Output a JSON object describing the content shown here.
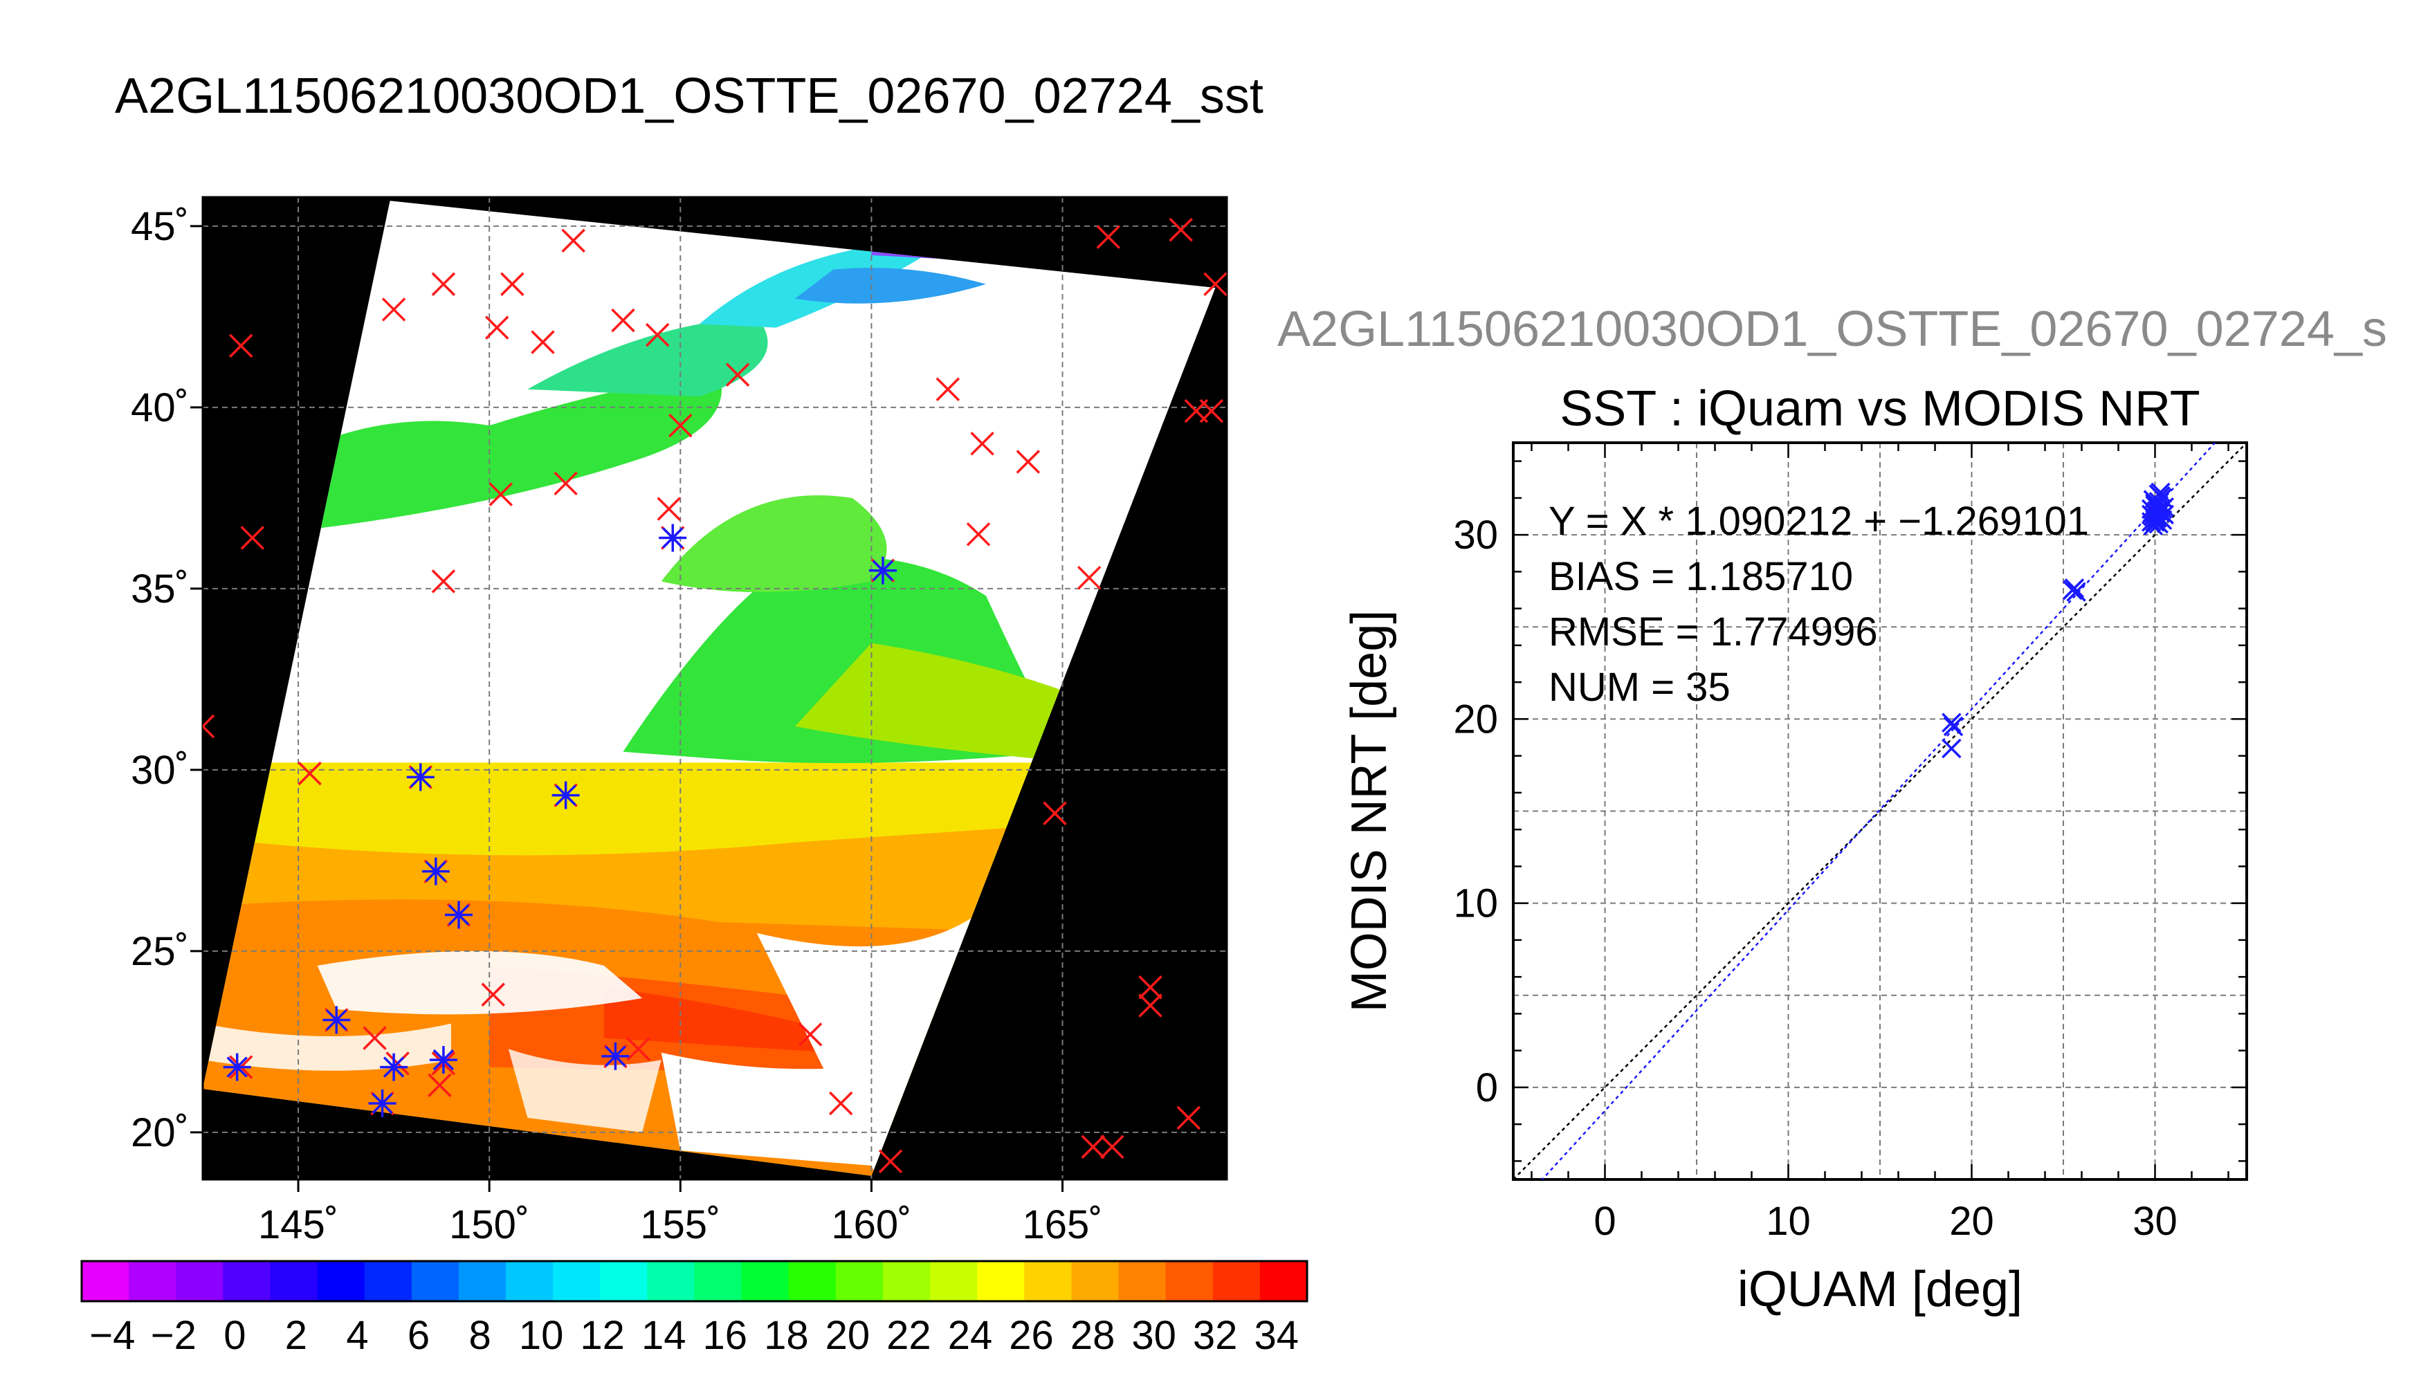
{
  "page_title": "A2GL11506210030OD1_OSTTE_02670_02724_sst",
  "chart_data": [
    {
      "type": "map",
      "title": "A2GL11506210030OD1_OSTTE_02670_02724_sst",
      "x_ticks": [
        145,
        150,
        155,
        160,
        165
      ],
      "y_ticks": [
        20,
        25,
        30,
        35,
        40,
        45
      ],
      "x_tick_labels": [
        "145˚",
        "150˚",
        "155˚",
        "160˚",
        "165˚"
      ],
      "y_tick_labels": [
        "20˚",
        "25˚",
        "30˚",
        "35˚",
        "40˚",
        "45˚"
      ],
      "xlim": [
        142.5,
        169.3
      ],
      "ylim": [
        18.7,
        45.8
      ],
      "grid": true,
      "swath_corners_lonlat": [
        [
          147.4,
          45.7
        ],
        [
          169.0,
          43.3
        ],
        [
          160.0,
          18.8
        ],
        [
          142.5,
          21.2
        ]
      ],
      "sst_regions": [
        {
          "name": "cold-north-patches",
          "color": "#2ee0e8"
        },
        {
          "name": "green-band",
          "color": "#33e43a"
        },
        {
          "name": "yellow-band",
          "color": "#f6e400"
        },
        {
          "name": "orange-band",
          "color": "#ff8a00"
        },
        {
          "name": "red-south",
          "color": "#ff3a00"
        },
        {
          "name": "cloud",
          "color": "#ffffff"
        }
      ],
      "red_x_points": [
        [
          152.2,
          44.6
        ],
        [
          147.5,
          42.7
        ],
        [
          148.8,
          43.4
        ],
        [
          150.6,
          43.4
        ],
        [
          153.5,
          42.4
        ],
        [
          154.4,
          42.0
        ],
        [
          150.2,
          42.2
        ],
        [
          151.4,
          41.8
        ],
        [
          143.5,
          41.7
        ],
        [
          156.5,
          40.9
        ],
        [
          155.0,
          39.5
        ],
        [
          162.0,
          40.5
        ],
        [
          162.9,
          39.0
        ],
        [
          164.1,
          38.5
        ],
        [
          150.3,
          37.6
        ],
        [
          152.0,
          37.9
        ],
        [
          154.7,
          37.2
        ],
        [
          162.8,
          36.5
        ],
        [
          143.8,
          36.4
        ],
        [
          148.8,
          35.2
        ],
        [
          154.8,
          36.4
        ],
        [
          165.7,
          35.3
        ],
        [
          160.3,
          35.5
        ],
        [
          142.5,
          31.2
        ],
        [
          145.3,
          29.9
        ],
        [
          148.2,
          29.8
        ],
        [
          152.0,
          29.3
        ],
        [
          164.8,
          28.8
        ],
        [
          148.6,
          27.2
        ],
        [
          149.2,
          26.0
        ],
        [
          150.1,
          23.8
        ],
        [
          167.3,
          24.0
        ],
        [
          167.3,
          23.5
        ],
        [
          146.0,
          23.1
        ],
        [
          147.0,
          22.6
        ],
        [
          153.9,
          22.3
        ],
        [
          158.4,
          22.7
        ],
        [
          143.5,
          21.8
        ],
        [
          147.6,
          21.9
        ],
        [
          148.8,
          21.9
        ],
        [
          153.3,
          22.1
        ],
        [
          148.7,
          21.3
        ],
        [
          147.2,
          20.8
        ],
        [
          159.2,
          20.8
        ],
        [
          168.3,
          20.4
        ],
        [
          165.8,
          19.6
        ],
        [
          166.3,
          19.6
        ],
        [
          160.5,
          19.2
        ],
        [
          166.2,
          44.7
        ],
        [
          168.1,
          44.9
        ],
        [
          169.0,
          43.4
        ],
        [
          168.5,
          39.9
        ],
        [
          168.9,
          39.9
        ]
      ],
      "blue_star_points": [
        [
          143.4,
          21.8
        ],
        [
          147.5,
          21.8
        ],
        [
          148.8,
          22.0
        ],
        [
          146.0,
          23.1
        ],
        [
          147.2,
          20.8
        ],
        [
          153.3,
          22.1
        ],
        [
          148.2,
          29.8
        ],
        [
          148.6,
          27.2
        ],
        [
          149.2,
          26.0
        ],
        [
          152.0,
          29.3
        ],
        [
          154.8,
          36.4
        ],
        [
          160.3,
          35.5
        ]
      ]
    },
    {
      "type": "colorbar",
      "tick_labels": [
        "−4",
        "−2",
        "0",
        "2",
        "4",
        "6",
        "8",
        "10",
        "12",
        "14",
        "16",
        "18",
        "20",
        "22",
        "24",
        "26",
        "28",
        "30",
        "32",
        "34"
      ],
      "range": [
        -5,
        35
      ],
      "colors": [
        "#e600ff",
        "#b000ff",
        "#8c00ff",
        "#5000ff",
        "#2800ff",
        "#0000ff",
        "#0028ff",
        "#0064ff",
        "#0096ff",
        "#00c8ff",
        "#00e6ff",
        "#00ffe6",
        "#00ffaa",
        "#00ff6e",
        "#00ff32",
        "#28ff00",
        "#64ff00",
        "#a0ff00",
        "#c8ff00",
        "#ffff00",
        "#ffd200",
        "#ffaa00",
        "#ff8200",
        "#ff5a00",
        "#ff3200",
        "#ff0000"
      ]
    },
    {
      "type": "scatter",
      "header": "A2GL11506210030OD1_OSTTE_02670_02724_s",
      "title": "SST : iQuam vs MODIS NRT",
      "xlabel": "iQUAM [deg]",
      "ylabel": "MODIS NRT [deg]",
      "xlim": [
        -5,
        35
      ],
      "ylim": [
        -5,
        35
      ],
      "x_ticks": [
        0,
        10,
        20,
        30
      ],
      "y_ticks": [
        0,
        10,
        20,
        30
      ],
      "x_tick_labels": [
        "0",
        "10",
        "20",
        "30"
      ],
      "y_tick_labels": [
        "0",
        "10",
        "20",
        "30"
      ],
      "grid": true,
      "annotations": [
        "Y = X * 1.090212 + −1.269101",
        "BIAS = 1.185710",
        "RMSE = 1.774996",
        "NUM = 35"
      ],
      "fit": {
        "slope": 1.090212,
        "intercept": -1.269101
      },
      "points": [
        [
          18.9,
          19.8
        ],
        [
          18.9,
          18.4
        ],
        [
          19.0,
          19.6
        ],
        [
          25.5,
          27.0
        ],
        [
          25.7,
          26.9
        ],
        [
          25.6,
          27.1
        ],
        [
          29.8,
          30.7
        ],
        [
          29.9,
          31.0
        ],
        [
          30.0,
          31.2
        ],
        [
          30.1,
          31.5
        ],
        [
          30.2,
          31.8
        ],
        [
          30.3,
          32.1
        ],
        [
          29.9,
          30.5
        ],
        [
          30.0,
          30.9
        ],
        [
          30.1,
          31.3
        ],
        [
          30.2,
          31.6
        ],
        [
          30.3,
          32.3
        ],
        [
          30.4,
          30.8
        ],
        [
          30.5,
          31.1
        ],
        [
          30.0,
          31.7
        ],
        [
          29.8,
          31.4
        ],
        [
          30.2,
          30.6
        ],
        [
          30.4,
          32.0
        ],
        [
          30.1,
          30.9
        ],
        [
          30.3,
          31.2
        ],
        [
          29.9,
          31.9
        ],
        [
          30.0,
          30.7
        ],
        [
          30.5,
          31.5
        ],
        [
          30.2,
          32.2
        ],
        [
          30.1,
          31.0
        ],
        [
          29.8,
          31.1
        ],
        [
          30.4,
          31.4
        ],
        [
          30.0,
          31.6
        ],
        [
          30.3,
          30.9
        ],
        [
          30.2,
          31.3
        ]
      ]
    }
  ]
}
